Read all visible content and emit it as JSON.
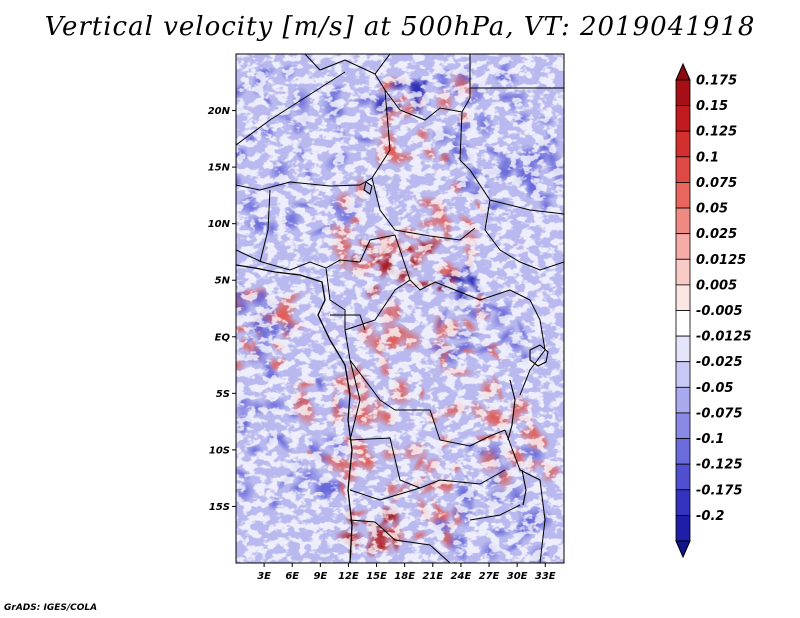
{
  "title": "Vertical velocity [m/s] at 500hPa, VT: 2019041918",
  "credit": "GrADS: IGES/COLA",
  "map": {
    "lon_range": [
      0,
      35
    ],
    "lat_range": [
      -20,
      25
    ],
    "lat_ticks": [
      {
        "lat": 20,
        "label": "20N"
      },
      {
        "lat": 15,
        "label": "15N"
      },
      {
        "lat": 10,
        "label": "10N"
      },
      {
        "lat": 5,
        "label": "5N"
      },
      {
        "lat": 0,
        "label": "EQ"
      },
      {
        "lat": -5,
        "label": "5S"
      },
      {
        "lat": -10,
        "label": "10S"
      },
      {
        "lat": -15,
        "label": "15S"
      }
    ],
    "lon_ticks": [
      {
        "lon": 3,
        "label": "3E"
      },
      {
        "lon": 6,
        "label": "6E"
      },
      {
        "lon": 9,
        "label": "9E"
      },
      {
        "lon": 12,
        "label": "12E"
      },
      {
        "lon": 15,
        "label": "15E"
      },
      {
        "lon": 18,
        "label": "18E"
      },
      {
        "lon": 21,
        "label": "21E"
      },
      {
        "lon": 24,
        "label": "24E"
      },
      {
        "lon": 27,
        "label": "27E"
      },
      {
        "lon": 30,
        "label": "30E"
      },
      {
        "lon": 33,
        "label": "33E"
      }
    ]
  },
  "colorbar": {
    "levels": [
      {
        "label": "0.175",
        "color": "#a50f15"
      },
      {
        "label": "0.15",
        "color": "#c01b1e"
      },
      {
        "label": "0.125",
        "color": "#d32f2f"
      },
      {
        "label": "0.1",
        "color": "#e04a45"
      },
      {
        "label": "0.075",
        "color": "#e8665e"
      },
      {
        "label": "0.05",
        "color": "#ef8a82"
      },
      {
        "label": "0.025",
        "color": "#f5aca6"
      },
      {
        "label": "0.0125",
        "color": "#f9cbc6"
      },
      {
        "label": "0.005",
        "color": "#fce6e3"
      },
      {
        "label": "-0.005",
        "color": "#ffffff"
      },
      {
        "label": "-0.0125",
        "color": "#e4e4fb"
      },
      {
        "label": "-0.025",
        "color": "#c8c8f5"
      },
      {
        "label": "-0.05",
        "color": "#a9a9ee"
      },
      {
        "label": "-0.075",
        "color": "#8a8ae6"
      },
      {
        "label": "-0.1",
        "color": "#6b6bdc"
      },
      {
        "label": "-0.125",
        "color": "#4f4fcf"
      },
      {
        "label": "-0.175",
        "color": "#3333bf"
      },
      {
        "label": "-0.2",
        "color": "#1e1ea8"
      }
    ],
    "top_color": "#8b0a10",
    "bottom_color": "#14148c"
  }
}
